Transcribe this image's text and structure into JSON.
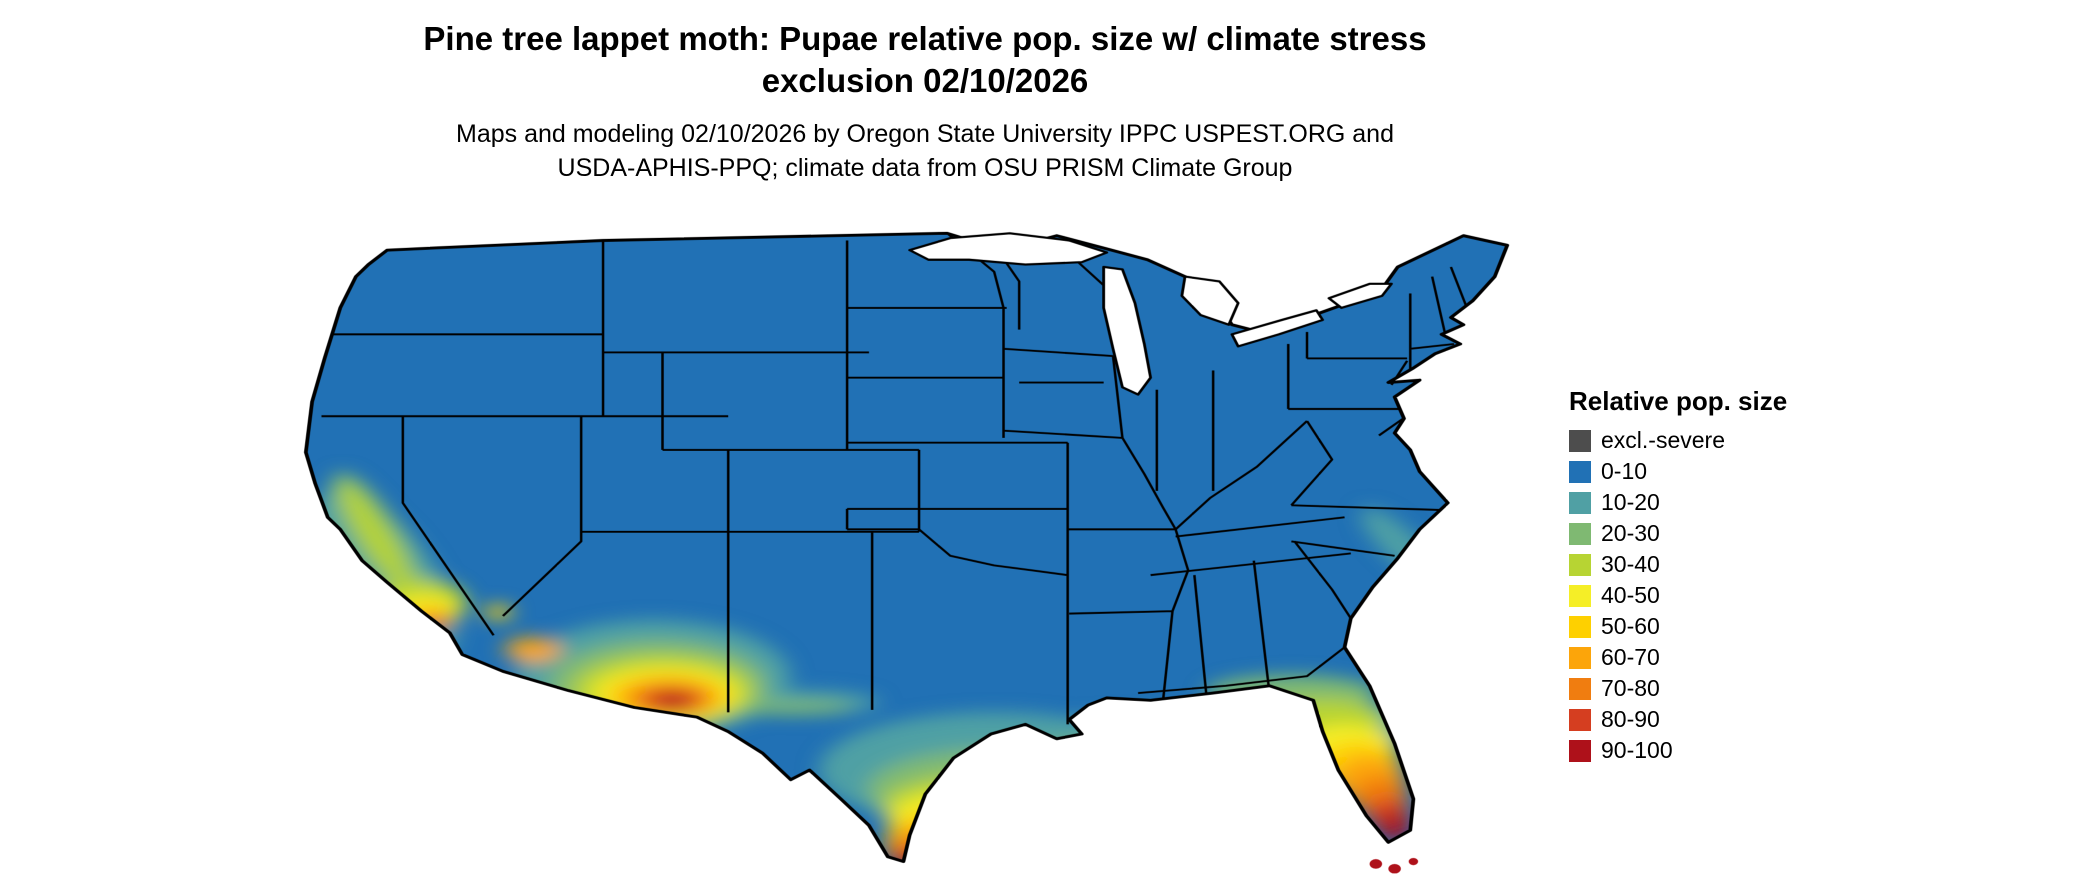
{
  "header": {
    "title_line1": "Pine tree lappet moth: Pupae relative pop. size w/ climate stress",
    "title_line2": "exclusion 02/10/2026",
    "subtitle_line1": "Maps and modeling 02/10/2026 by Oregon State University IPPC USPEST.ORG and",
    "subtitle_line2": "USDA-APHIS-PPQ; climate data from OSU PRISM Climate Group"
  },
  "legend": {
    "title": "Relative pop. size",
    "items": [
      {
        "label": "excl.-severe",
        "color": "#4d4d4d"
      },
      {
        "label": "0-10",
        "color": "#2171b5"
      },
      {
        "label": "10-20",
        "color": "#50a0a4"
      },
      {
        "label": "20-30",
        "color": "#7fb972"
      },
      {
        "label": "30-40",
        "color": "#b7d433"
      },
      {
        "label": "40-50",
        "color": "#f5ee27"
      },
      {
        "label": "50-60",
        "color": "#fed000"
      },
      {
        "label": "60-70",
        "color": "#fca50a"
      },
      {
        "label": "70-80",
        "color": "#f07d10"
      },
      {
        "label": "80-90",
        "color": "#d53e20"
      },
      {
        "label": "90-100",
        "color": "#ae111a"
      }
    ]
  },
  "map": {
    "name": "Contiguous United States risk map",
    "base_fill": "#2171b5",
    "water_color": "#ffffff",
    "boundary_color": "#000000"
  }
}
